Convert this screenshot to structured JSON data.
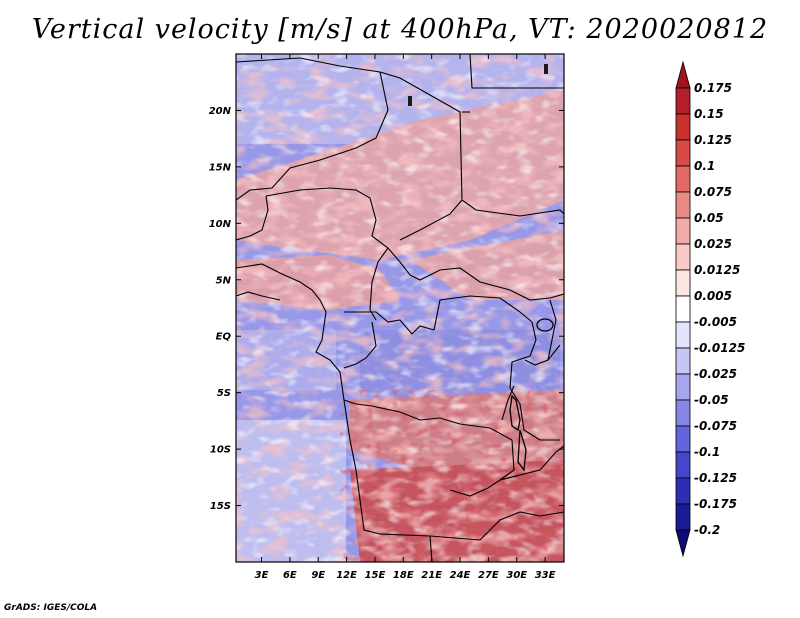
{
  "title": "Vertical velocity [m/s] at 400hPa, VT: 2020020812",
  "credit": "GrADS: IGES/COLA",
  "chart_data": {
    "type": "heatmap",
    "title": "Vertical velocity [m/s] at 400hPa, VT: 2020020812",
    "x_ticks": [
      "3E",
      "6E",
      "9E",
      "12E",
      "15E",
      "18E",
      "21E",
      "24E",
      "27E",
      "30E",
      "33E"
    ],
    "x_tick_values": [
      3,
      6,
      9,
      12,
      15,
      18,
      21,
      24,
      27,
      30,
      33
    ],
    "y_ticks": [
      "20N",
      "15N",
      "10N",
      "5N",
      "EQ",
      "5S",
      "10S",
      "15S"
    ],
    "y_tick_values": [
      20,
      15,
      10,
      5,
      0,
      -5,
      -10,
      -15
    ],
    "xlim": [
      0.3,
      35
    ],
    "ylim": [
      -20,
      25
    ],
    "colorbar": {
      "labels": [
        "0.175",
        "0.15",
        "0.125",
        "0.1",
        "0.075",
        "0.05",
        "0.025",
        "0.0125",
        "0.005",
        "-0.005",
        "-0.0125",
        "-0.025",
        "-0.05",
        "-0.075",
        "-0.1",
        "-0.125",
        "-0.175",
        "-0.2"
      ],
      "colors": [
        "#a0141e",
        "#b4202a",
        "#c8322f",
        "#d84a46",
        "#e26a64",
        "#ea8a84",
        "#f2aaa6",
        "#f8cbc8",
        "#fce6e4",
        "#ffffff",
        "#e4e4fc",
        "#c6c6f6",
        "#a6a6ee",
        "#8686e6",
        "#6464dc",
        "#4646cc",
        "#2e2eb4",
        "#1a1a96",
        "#0c0c78"
      ]
    }
  }
}
